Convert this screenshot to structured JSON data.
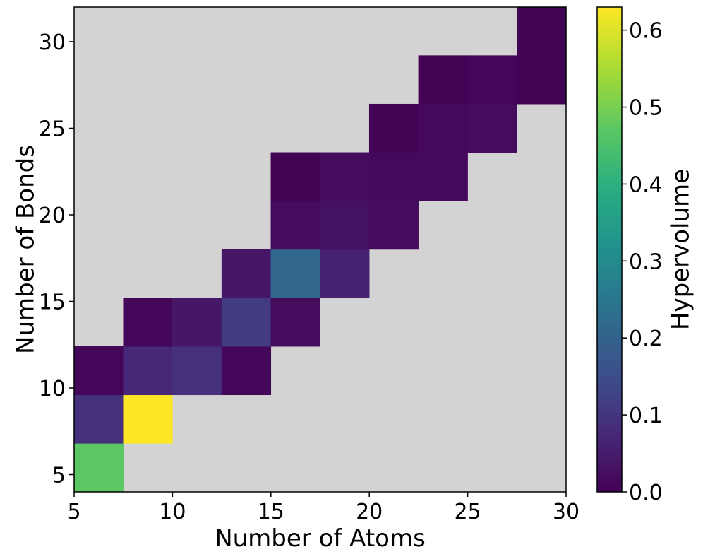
{
  "chart_data": {
    "type": "heatmap",
    "xlabel": "Number of Atoms",
    "ylabel": "Number of Bonds",
    "xlim": [
      5,
      30
    ],
    "ylim": [
      4,
      32
    ],
    "x_ticks": [
      5,
      10,
      15,
      20,
      25,
      30
    ],
    "y_ticks": [
      5,
      10,
      15,
      20,
      25,
      30
    ],
    "x_bin_edges": [
      5,
      7.5,
      10,
      12.5,
      15,
      17.5,
      20,
      22.5,
      25,
      27.5,
      30
    ],
    "y_bin_edges": [
      4.0,
      6.8,
      9.6,
      12.4,
      15.2,
      18.0,
      20.8,
      23.6,
      26.4,
      29.2,
      32.0
    ],
    "background_color": "#d3d3d3",
    "colormap": "viridis",
    "colorbar": {
      "label": "Hypervolume",
      "range": [
        0.0,
        0.63
      ],
      "ticks": [
        0.0,
        0.1,
        0.2,
        0.3,
        0.4,
        0.5,
        0.6
      ],
      "tick_labels": [
        "0.0",
        "0.1",
        "0.2",
        "0.3",
        "0.4",
        "0.5",
        "0.6"
      ]
    },
    "cells": [
      {
        "x_bin": 0,
        "y_bin": 0,
        "value": 0.47
      },
      {
        "x_bin": 0,
        "y_bin": 1,
        "value": 0.09
      },
      {
        "x_bin": 1,
        "y_bin": 1,
        "value": 0.63
      },
      {
        "x_bin": 0,
        "y_bin": 2,
        "value": 0.01
      },
      {
        "x_bin": 1,
        "y_bin": 2,
        "value": 0.07
      },
      {
        "x_bin": 2,
        "y_bin": 2,
        "value": 0.09
      },
      {
        "x_bin": 3,
        "y_bin": 2,
        "value": 0.01
      },
      {
        "x_bin": 1,
        "y_bin": 3,
        "value": 0.01
      },
      {
        "x_bin": 2,
        "y_bin": 3,
        "value": 0.04
      },
      {
        "x_bin": 3,
        "y_bin": 3,
        "value": 0.11
      },
      {
        "x_bin": 4,
        "y_bin": 3,
        "value": 0.02
      },
      {
        "x_bin": 3,
        "y_bin": 4,
        "value": 0.04
      },
      {
        "x_bin": 4,
        "y_bin": 4,
        "value": 0.21
      },
      {
        "x_bin": 5,
        "y_bin": 4,
        "value": 0.06
      },
      {
        "x_bin": 4,
        "y_bin": 5,
        "value": 0.02
      },
      {
        "x_bin": 5,
        "y_bin": 5,
        "value": 0.03
      },
      {
        "x_bin": 6,
        "y_bin": 5,
        "value": 0.02
      },
      {
        "x_bin": 4,
        "y_bin": 6,
        "value": 0.005
      },
      {
        "x_bin": 5,
        "y_bin": 6,
        "value": 0.02
      },
      {
        "x_bin": 6,
        "y_bin": 6,
        "value": 0.015
      },
      {
        "x_bin": 7,
        "y_bin": 6,
        "value": 0.015
      },
      {
        "x_bin": 6,
        "y_bin": 7,
        "value": 0.005
      },
      {
        "x_bin": 7,
        "y_bin": 7,
        "value": 0.015
      },
      {
        "x_bin": 8,
        "y_bin": 7,
        "value": 0.02
      },
      {
        "x_bin": 7,
        "y_bin": 8,
        "value": 0.005
      },
      {
        "x_bin": 8,
        "y_bin": 8,
        "value": 0.01
      },
      {
        "x_bin": 9,
        "y_bin": 8,
        "value": 0.005
      },
      {
        "x_bin": 9,
        "y_bin": 9,
        "value": 0.005
      }
    ]
  }
}
